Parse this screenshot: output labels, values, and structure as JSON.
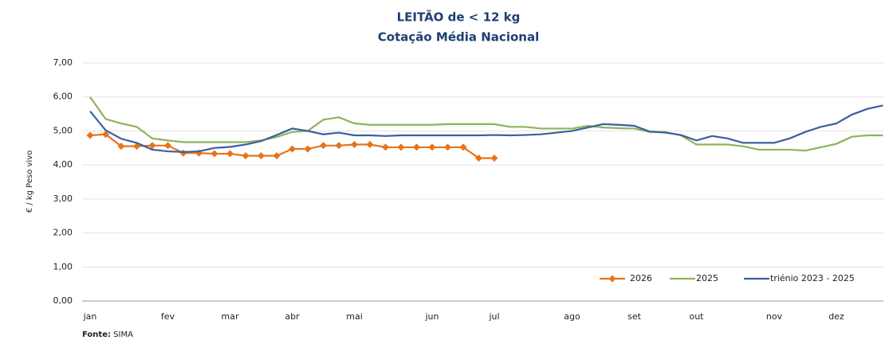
{
  "chart_data": {
    "type": "line",
    "title": "LEITÃO de < 12 kg",
    "subtitle": "Cotação Média Nacional",
    "y_label": "€ / kg Peso vivo",
    "source_label": "Fonte:",
    "source": "SIMA",
    "categories": [
      "jan",
      null,
      null,
      null,
      null,
      "fev",
      null,
      null,
      null,
      "mar",
      null,
      null,
      null,
      "abr",
      null,
      null,
      null,
      "mai",
      null,
      null,
      null,
      null,
      "jun",
      null,
      null,
      null,
      "jul",
      null,
      null,
      null,
      null,
      "ago",
      null,
      null,
      null,
      "set",
      null,
      null,
      null,
      "out",
      null,
      null,
      null,
      null,
      "nov",
      null,
      null,
      null,
      "dez",
      null,
      null,
      null
    ],
    "ylim": [
      0,
      7
    ],
    "yticks": [
      {
        "value": 0,
        "label": "0,00"
      },
      {
        "value": 1,
        "label": "1,00"
      },
      {
        "value": 2,
        "label": "2,00"
      },
      {
        "value": 3,
        "label": "3,00"
      },
      {
        "value": 4,
        "label": "4,00"
      },
      {
        "value": 5,
        "label": "5,00"
      },
      {
        "value": 6,
        "label": "6,00"
      },
      {
        "value": 7,
        "label": "7,00"
      }
    ],
    "grid": true,
    "legend": "lower right",
    "series": [
      {
        "name": "2026",
        "color": "#e8731a",
        "marker": "diamond",
        "values": [
          4.87,
          4.9,
          4.55,
          4.55,
          4.57,
          4.57,
          4.35,
          4.35,
          4.33,
          4.33,
          4.27,
          4.27,
          4.27,
          4.47,
          4.47,
          4.57,
          4.57,
          4.6,
          4.6,
          4.52,
          4.52,
          4.52,
          4.52,
          4.52,
          4.52,
          4.2,
          4.2,
          null,
          null,
          null,
          null,
          null,
          null,
          null,
          null,
          null,
          null,
          null,
          null,
          null,
          null,
          null,
          null,
          null,
          null,
          null,
          null,
          null,
          null,
          null,
          null,
          null
        ]
      },
      {
        "name": "2025",
        "color": "#8fb35a",
        "values": [
          6.0,
          5.35,
          5.22,
          5.12,
          4.78,
          4.72,
          4.67,
          4.67,
          4.67,
          4.67,
          4.67,
          4.72,
          4.82,
          4.97,
          5.0,
          5.33,
          5.4,
          5.22,
          5.18,
          5.18,
          5.18,
          5.18,
          5.18,
          5.2,
          5.2,
          5.2,
          5.2,
          5.12,
          5.12,
          5.07,
          5.07,
          5.07,
          5.15,
          5.1,
          5.08,
          5.07,
          4.97,
          4.97,
          4.87,
          4.6,
          4.6,
          4.6,
          4.55,
          4.45,
          4.45,
          4.45,
          4.42,
          4.52,
          4.62,
          4.83,
          4.87,
          4.87
        ]
      },
      {
        "name": "triénio 2023 - 2025",
        "color": "#3a5f9e",
        "values": [
          5.58,
          5.02,
          4.77,
          4.65,
          4.45,
          4.4,
          4.38,
          4.4,
          4.5,
          4.53,
          4.6,
          4.7,
          4.88,
          5.07,
          5.0,
          4.9,
          4.95,
          4.87,
          4.87,
          4.85,
          4.87,
          4.87,
          4.87,
          4.87,
          4.87,
          4.87,
          4.88,
          4.87,
          4.88,
          4.9,
          4.95,
          5.0,
          5.1,
          5.2,
          5.18,
          5.15,
          4.98,
          4.95,
          4.88,
          4.72,
          4.85,
          4.78,
          4.65,
          4.65,
          4.65,
          4.78,
          4.97,
          5.12,
          5.22,
          5.48,
          5.65,
          5.75
        ]
      }
    ]
  }
}
